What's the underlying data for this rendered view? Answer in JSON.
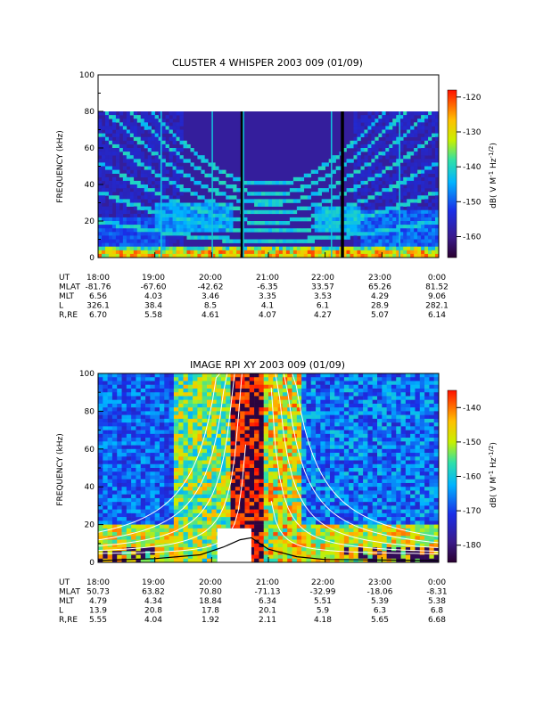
{
  "chart_data": [
    {
      "type": "heatmap",
      "title": "CLUSTER 4 WHISPER 2003 009 (01/09)",
      "ylabel": "FREQUENCY (kHz)",
      "ylim": [
        0,
        100
      ],
      "y_ticks": [
        "0",
        "20",
        "40",
        "60",
        "80",
        "100"
      ],
      "data_ceiling_khz": 80,
      "x_ticks": [
        "18:00",
        "19:00",
        "20:00",
        "21:00",
        "22:00",
        "23:00",
        "0:00"
      ],
      "colorbar": {
        "label": "dB( V M",
        "label_sup1": "-1",
        "label_mid": " Hz",
        "label_sup2": "-1/2",
        "label_end": ")",
        "ticks": [
          "-120",
          "-130",
          "-140",
          "-150",
          "-160"
        ],
        "range": [
          -166,
          -118
        ]
      },
      "ephemeris": [
        {
          "label": "UT",
          "values": [
            "18:00",
            "19:00",
            "20:00",
            "21:00",
            "22:00",
            "23:00",
            "0:00"
          ]
        },
        {
          "label": "MLAT",
          "values": [
            "-81.76",
            "-67.60",
            "-42.62",
            "-6.35",
            "33.57",
            "65.26",
            "81.52"
          ]
        },
        {
          "label": "MLT",
          "values": [
            "6.56",
            "4.03",
            "3.46",
            "3.35",
            "3.53",
            "4.29",
            "9.06"
          ]
        },
        {
          "label": "L",
          "values": [
            "326.1",
            "38.4",
            "8.5",
            "4.1",
            "6.1",
            "28.9",
            "282.1"
          ]
        },
        {
          "label": "R,RE",
          "values": [
            "6.70",
            "5.58",
            "4.61",
            "4.07",
            "4.27",
            "5.07",
            "6.14"
          ]
        }
      ],
      "features": {
        "black_vertical_lines_ut": [
          "20:32",
          "22:18"
        ],
        "harmonic_band_description": "curved emission bands with minimum near 21:00"
      }
    },
    {
      "type": "heatmap",
      "title": "IMAGE RPI XY 2003 009 (01/09)",
      "ylabel": "FREQUENCY (kHz)",
      "ylim": [
        0,
        100
      ],
      "y_ticks": [
        "0",
        "20",
        "40",
        "60",
        "80",
        "100"
      ],
      "x_ticks": [
        "18:00",
        "19:00",
        "20:00",
        "21:00",
        "22:00",
        "23:00",
        "0:00"
      ],
      "colorbar": {
        "label": "dB( V M",
        "label_sup1": "-1",
        "label_mid": " Hz",
        "label_sup2": "-1/2",
        "label_end": ")",
        "ticks": [
          "-140",
          "-150",
          "-160",
          "-170",
          "-180"
        ],
        "range": [
          -185,
          -135
        ]
      },
      "ephemeris": [
        {
          "label": "UT",
          "values": [
            "18:00",
            "19:00",
            "20:00",
            "21:00",
            "22:00",
            "23:00",
            "0:00"
          ]
        },
        {
          "label": "MLAT",
          "values": [
            "50.73",
            "63.82",
            "70.80",
            "-71.13",
            "-32.99",
            "-18.06",
            "-8.31"
          ]
        },
        {
          "label": "MLT",
          "values": [
            "4.79",
            "4.34",
            "18.84",
            "6.34",
            "5.51",
            "5.39",
            "5.38"
          ]
        },
        {
          "label": "L",
          "values": [
            "13.9",
            "20.8",
            "17.8",
            "20.1",
            "5.9",
            "6.3",
            "6.8"
          ]
        },
        {
          "label": "R,RE",
          "values": [
            "5.55",
            "4.04",
            "1.92",
            "2.11",
            "4.18",
            "5.65",
            "6.68"
          ]
        }
      ],
      "white_gap": {
        "x_start_hour": 20.1,
        "x_end_hour": 20.7,
        "y_max_khz": 18
      },
      "profile_curve": [
        {
          "x": 18.0,
          "y": 1
        },
        {
          "x": 19.0,
          "y": 2
        },
        {
          "x": 19.8,
          "y": 4
        },
        {
          "x": 20.2,
          "y": 8
        },
        {
          "x": 20.5,
          "y": 12
        },
        {
          "x": 20.7,
          "y": 13
        },
        {
          "x": 21.0,
          "y": 7
        },
        {
          "x": 21.5,
          "y": 3
        },
        {
          "x": 22.0,
          "y": 1.5
        },
        {
          "x": 24.0,
          "y": 1
        }
      ]
    }
  ]
}
